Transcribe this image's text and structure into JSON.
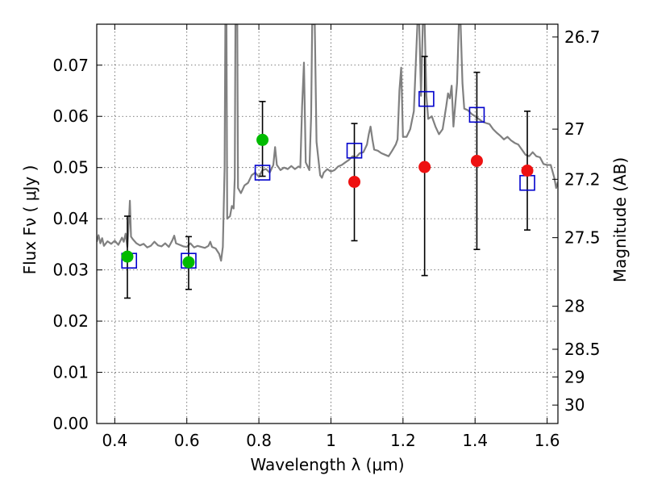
{
  "chart_data": {
    "type": "scatter",
    "xlabel": "Wavelength  λ (μm)",
    "ylabel": "Flux  Fν  ( μJy )",
    "y2label": "Magnitude (AB)",
    "xlim": [
      0.35,
      1.63
    ],
    "ylim": [
      0.0,
      0.078
    ],
    "grid": true,
    "x_ticks": [
      {
        "value": 0.4,
        "label": "0.4"
      },
      {
        "value": 0.6,
        "label": "0.6"
      },
      {
        "value": 0.8,
        "label": "0.8"
      },
      {
        "value": 1.0,
        "label": "1"
      },
      {
        "value": 1.2,
        "label": "1.2"
      },
      {
        "value": 1.4,
        "label": "1.4"
      },
      {
        "value": 1.6,
        "label": "1.6"
      }
    ],
    "y_ticks": [
      {
        "value": 0.0,
        "label": "0.00"
      },
      {
        "value": 0.01,
        "label": "0.01"
      },
      {
        "value": 0.02,
        "label": "0.02"
      },
      {
        "value": 0.03,
        "label": "0.03"
      },
      {
        "value": 0.04,
        "label": "0.04"
      },
      {
        "value": 0.05,
        "label": "0.05"
      },
      {
        "value": 0.06,
        "label": "0.06"
      },
      {
        "value": 0.07,
        "label": "0.07"
      }
    ],
    "y2_ticks": [
      {
        "flux": 0.0755,
        "label": "26.7"
      },
      {
        "flux": 0.0575,
        "label": "27"
      },
      {
        "flux": 0.0477,
        "label": "27.2"
      },
      {
        "flux": 0.0363,
        "label": "27.5"
      },
      {
        "flux": 0.0229,
        "label": "28"
      },
      {
        "flux": 0.0145,
        "label": "28.5"
      },
      {
        "flux": 0.0091,
        "label": "29"
      },
      {
        "flux": 0.0036,
        "label": "30"
      }
    ],
    "colors": {
      "spectrum": "#808080",
      "model_photometry": "#0000cc",
      "optical_detections": "#00bb00",
      "nir_detections": "#ee1111",
      "errorbars": "#000000"
    },
    "series": [
      {
        "kind": "spectrum",
        "points": [
          [
            0.35,
            0.0355
          ],
          [
            0.355,
            0.0368
          ],
          [
            0.36,
            0.0352
          ],
          [
            0.365,
            0.0362
          ],
          [
            0.37,
            0.0347
          ],
          [
            0.38,
            0.0356
          ],
          [
            0.39,
            0.0351
          ],
          [
            0.4,
            0.0357
          ],
          [
            0.41,
            0.0349
          ],
          [
            0.42,
            0.0363
          ],
          [
            0.425,
            0.0355
          ],
          [
            0.43,
            0.0371
          ],
          [
            0.435,
            0.0345
          ],
          [
            0.44,
            0.0405
          ],
          [
            0.442,
            0.0435
          ],
          [
            0.445,
            0.0365
          ],
          [
            0.45,
            0.036
          ],
          [
            0.46,
            0.0352
          ],
          [
            0.47,
            0.0348
          ],
          [
            0.48,
            0.0351
          ],
          [
            0.49,
            0.0344
          ],
          [
            0.5,
            0.0347
          ],
          [
            0.51,
            0.0355
          ],
          [
            0.52,
            0.0348
          ],
          [
            0.53,
            0.0346
          ],
          [
            0.54,
            0.0352
          ],
          [
            0.55,
            0.0345
          ],
          [
            0.56,
            0.0358
          ],
          [
            0.565,
            0.0367
          ],
          [
            0.57,
            0.0352
          ],
          [
            0.58,
            0.0349
          ],
          [
            0.59,
            0.0346
          ],
          [
            0.6,
            0.0345
          ],
          [
            0.61,
            0.0352
          ],
          [
            0.62,
            0.0344
          ],
          [
            0.63,
            0.0347
          ],
          [
            0.64,
            0.0345
          ],
          [
            0.65,
            0.0343
          ],
          [
            0.66,
            0.0347
          ],
          [
            0.665,
            0.0355
          ],
          [
            0.67,
            0.0345
          ],
          [
            0.68,
            0.0342
          ],
          [
            0.69,
            0.0331
          ],
          [
            0.695,
            0.0318
          ],
          [
            0.7,
            0.0345
          ],
          [
            0.705,
            0.05
          ],
          [
            0.707,
            0.078
          ],
          [
            0.71,
            0.078
          ],
          [
            0.712,
            0.04
          ],
          [
            0.72,
            0.0405
          ],
          [
            0.725,
            0.0425
          ],
          [
            0.73,
            0.042
          ],
          [
            0.733,
            0.048
          ],
          [
            0.735,
            0.078
          ],
          [
            0.74,
            0.078
          ],
          [
            0.742,
            0.046
          ],
          [
            0.75,
            0.045
          ],
          [
            0.76,
            0.0465
          ],
          [
            0.77,
            0.047
          ],
          [
            0.78,
            0.0485
          ],
          [
            0.79,
            0.049
          ],
          [
            0.8,
            0.0482
          ],
          [
            0.81,
            0.0495
          ],
          [
            0.82,
            0.0497
          ],
          [
            0.83,
            0.049
          ],
          [
            0.84,
            0.0505
          ],
          [
            0.845,
            0.054
          ],
          [
            0.85,
            0.0505
          ],
          [
            0.86,
            0.0495
          ],
          [
            0.87,
            0.05
          ],
          [
            0.88,
            0.0497
          ],
          [
            0.89,
            0.0503
          ],
          [
            0.9,
            0.0497
          ],
          [
            0.91,
            0.0502
          ],
          [
            0.915,
            0.05
          ],
          [
            0.92,
            0.062
          ],
          [
            0.925,
            0.0705
          ],
          [
            0.93,
            0.051
          ],
          [
            0.94,
            0.0495
          ],
          [
            0.945,
            0.06
          ],
          [
            0.948,
            0.078
          ],
          [
            0.955,
            0.078
          ],
          [
            0.96,
            0.055
          ],
          [
            0.97,
            0.0485
          ],
          [
            0.975,
            0.048
          ],
          [
            0.98,
            0.049
          ],
          [
            0.99,
            0.0497
          ],
          [
            1.0,
            0.0492
          ],
          [
            1.01,
            0.0495
          ],
          [
            1.02,
            0.0502
          ],
          [
            1.03,
            0.0505
          ],
          [
            1.04,
            0.051
          ],
          [
            1.05,
            0.0515
          ],
          [
            1.06,
            0.0522
          ],
          [
            1.07,
            0.052
          ],
          [
            1.08,
            0.0528
          ],
          [
            1.09,
            0.053
          ],
          [
            1.1,
            0.0545
          ],
          [
            1.105,
            0.0565
          ],
          [
            1.11,
            0.058
          ],
          [
            1.115,
            0.0555
          ],
          [
            1.12,
            0.0535
          ],
          [
            1.13,
            0.0533
          ],
          [
            1.14,
            0.0528
          ],
          [
            1.15,
            0.0525
          ],
          [
            1.16,
            0.0522
          ],
          [
            1.17,
            0.0533
          ],
          [
            1.18,
            0.0545
          ],
          [
            1.185,
            0.0555
          ],
          [
            1.19,
            0.065
          ],
          [
            1.195,
            0.0695
          ],
          [
            1.2,
            0.056
          ],
          [
            1.21,
            0.056
          ],
          [
            1.22,
            0.0575
          ],
          [
            1.23,
            0.061
          ],
          [
            1.24,
            0.078
          ],
          [
            1.245,
            0.078
          ],
          [
            1.25,
            0.064
          ],
          [
            1.255,
            0.078
          ],
          [
            1.26,
            0.078
          ],
          [
            1.265,
            0.064
          ],
          [
            1.27,
            0.0595
          ],
          [
            1.28,
            0.06
          ],
          [
            1.29,
            0.058
          ],
          [
            1.3,
            0.0565
          ],
          [
            1.31,
            0.0575
          ],
          [
            1.32,
            0.062
          ],
          [
            1.325,
            0.0645
          ],
          [
            1.33,
            0.0635
          ],
          [
            1.335,
            0.066
          ],
          [
            1.34,
            0.058
          ],
          [
            1.35,
            0.0665
          ],
          [
            1.355,
            0.078
          ],
          [
            1.36,
            0.078
          ],
          [
            1.365,
            0.0665
          ],
          [
            1.37,
            0.0615
          ],
          [
            1.38,
            0.0612
          ],
          [
            1.39,
            0.0605
          ],
          [
            1.4,
            0.06
          ],
          [
            1.41,
            0.0595
          ],
          [
            1.42,
            0.059
          ],
          [
            1.43,
            0.0587
          ],
          [
            1.44,
            0.0585
          ],
          [
            1.45,
            0.0575
          ],
          [
            1.46,
            0.0568
          ],
          [
            1.47,
            0.0562
          ],
          [
            1.48,
            0.0555
          ],
          [
            1.49,
            0.056
          ],
          [
            1.5,
            0.0553
          ],
          [
            1.51,
            0.0548
          ],
          [
            1.52,
            0.0545
          ],
          [
            1.53,
            0.0535
          ],
          [
            1.54,
            0.0525
          ],
          [
            1.55,
            0.0522
          ],
          [
            1.56,
            0.053
          ],
          [
            1.57,
            0.0522
          ],
          [
            1.58,
            0.052
          ],
          [
            1.59,
            0.0507
          ],
          [
            1.6,
            0.0505
          ],
          [
            1.61,
            0.0505
          ],
          [
            1.62,
            0.048
          ],
          [
            1.625,
            0.046
          ],
          [
            1.63,
            0.0472
          ]
        ]
      },
      {
        "kind": "model_photometry",
        "points": [
          [
            0.44,
            0.0318
          ],
          [
            0.605,
            0.0318
          ],
          [
            0.81,
            0.049
          ],
          [
            1.065,
            0.0533
          ],
          [
            1.265,
            0.0634
          ],
          [
            1.405,
            0.0603
          ],
          [
            1.545,
            0.047
          ]
        ]
      },
      {
        "kind": "optical_detections",
        "points": [
          [
            0.435,
            0.0326
          ],
          [
            0.605,
            0.0315
          ],
          [
            0.81,
            0.0554
          ]
        ],
        "errors": [
          [
            0.0245,
            0.0405
          ],
          [
            0.0262,
            0.0365
          ],
          [
            0.0483,
            0.0629
          ]
        ]
      },
      {
        "kind": "nir_detections",
        "points": [
          [
            1.065,
            0.0472
          ],
          [
            1.26,
            0.0501
          ],
          [
            1.405,
            0.0513
          ],
          [
            1.545,
            0.0494
          ]
        ],
        "errors": [
          [
            0.0357,
            0.0586
          ],
          [
            0.0289,
            0.0717
          ],
          [
            0.034,
            0.0686
          ],
          [
            0.0378,
            0.061
          ]
        ]
      }
    ]
  }
}
